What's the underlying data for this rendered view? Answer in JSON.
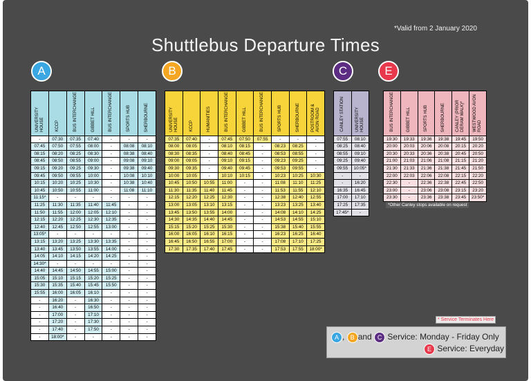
{
  "valid_note": "*Valid from 2 January 2020",
  "title": "Shuttlebus Departure Times",
  "routes": {
    "A": {
      "letter": "A",
      "color": "#3aa7e3",
      "headers": [
        "UNIVERSITY HOUSE",
        "KCCP",
        "BUS INTERCHANGE",
        "GIBBET HILL",
        "BUS INTERCHANGE",
        "SPORTS HUB",
        "SHERBOURNE"
      ],
      "rows": [
        [
          "-",
          "07:30",
          "07:35",
          "07:40",
          "-",
          "-",
          "-"
        ],
        [
          "07:45",
          "07:50",
          "07:55",
          "08:00",
          "-",
          "08:08",
          "08:10"
        ],
        [
          "08:15",
          "08:20",
          "08:25",
          "08:30",
          "-",
          "08:38",
          "08:40"
        ],
        [
          "08:45",
          "08:50",
          "08:55",
          "09:00",
          "-",
          "09:08",
          "09:10"
        ],
        [
          "09:15",
          "09:20",
          "09:25",
          "09:30",
          "-",
          "09:38",
          "09:40"
        ],
        [
          "09:45",
          "09:50",
          "09:55",
          "10:00",
          "-",
          "10:08",
          "10:10"
        ],
        [
          "10:15",
          "10:20",
          "10:25",
          "10:30",
          "-",
          "10:38",
          "10:40"
        ],
        [
          "10:45",
          "10:50",
          "10:55",
          "11:00",
          "-",
          "11:08",
          "11:10"
        ],
        [
          "11:15*",
          "-",
          "-",
          "-",
          "-",
          "-",
          "-"
        ],
        [
          "11:25",
          "11:30",
          "11:35",
          "11:40",
          "11:45",
          "-",
          "-"
        ],
        [
          "11:50",
          "11:55",
          "12:00",
          "12:05",
          "12:10",
          "-",
          "-"
        ],
        [
          "12:15",
          "12:20",
          "12:25",
          "12:30",
          "12:35",
          "-",
          "-"
        ],
        [
          "12:40",
          "12:45",
          "12:50",
          "12:55",
          "13:00",
          "-",
          "-"
        ],
        [
          "13:05*",
          "-",
          "-",
          "-",
          "-",
          "-",
          "-"
        ],
        [
          "13:15",
          "13:20",
          "13:25",
          "13:30",
          "13:35",
          "-",
          "-"
        ],
        [
          "13:40",
          "13:45",
          "13:50",
          "13:55",
          "14:00",
          "-",
          "-"
        ],
        [
          "14:05",
          "14:10",
          "14:15",
          "14:20",
          "14:25",
          "-",
          "-"
        ],
        [
          "14:30*",
          "-",
          "-",
          "-",
          "-",
          "-",
          "-"
        ],
        [
          "14:40",
          "14:45",
          "14:50",
          "14:55",
          "15:00",
          "-",
          "-"
        ],
        [
          "15:05",
          "15:10",
          "15:15",
          "15:20",
          "15:25",
          "-",
          "-"
        ],
        [
          "15:30",
          "15:35",
          "15:40",
          "15:45",
          "15:50",
          "-",
          "-"
        ],
        [
          "15:55",
          "16:00",
          "16:05",
          "16:10",
          "-",
          "-",
          "-"
        ],
        [
          "-",
          "16:20",
          "-",
          "16:30",
          "-",
          "-",
          "-"
        ],
        [
          "-",
          "16:40",
          "-",
          "16:50",
          "-",
          "-",
          "-"
        ],
        [
          "-",
          "17:00",
          "-",
          "17:10",
          "-",
          "-",
          "-"
        ],
        [
          "-",
          "17:20",
          "-",
          "17:30",
          "-",
          "-",
          "-"
        ],
        [
          "-",
          "17:40",
          "-",
          "17:50",
          "-",
          "-",
          "-"
        ],
        [
          "-",
          "18:00*",
          "-",
          "-",
          "-",
          "-",
          "-"
        ]
      ]
    },
    "B": {
      "letter": "B",
      "color": "#f5a623",
      "headers": [
        "UNIVERSITY HOUSE",
        "KCCP",
        "HUMANITIES",
        "BUS INTERCHANGE",
        "GIBBET HILL",
        "BUS INTERCHANGE",
        "SPORTS HUB",
        "SHERBOURNE",
        "POSTROOM & AVON ROAD"
      ],
      "rows": [
        [
          "07:35",
          "07:40",
          "-",
          "07:45",
          "07:50",
          "07:55",
          "-",
          "-",
          "-"
        ],
        [
          "08:00",
          "08:05",
          "-",
          "08:10",
          "08:15",
          "-",
          "08:23",
          "08:25",
          "-"
        ],
        [
          "08:30",
          "08:35",
          "-",
          "08:40",
          "08:45",
          "-",
          "08:53",
          "08:55",
          "-"
        ],
        [
          "09:00",
          "09:05",
          "-",
          "09:10",
          "09:15",
          "-",
          "09:23",
          "09:25",
          "-"
        ],
        [
          "09:30",
          "09:35",
          "-",
          "09:40",
          "09:45",
          "-",
          "09:53",
          "09:55",
          "-"
        ],
        [
          "10:00",
          "10:05",
          "-",
          "10:10",
          "10:15",
          "-",
          "10:23",
          "10:25",
          "10:30"
        ],
        [
          "10:45",
          "10:50",
          "10:55",
          "11:00",
          "-",
          "-",
          "11:08",
          "11:10",
          "11:25"
        ],
        [
          "11:30",
          "11:35",
          "11:40",
          "11:45",
          "-",
          "-",
          "11:53",
          "11:55",
          "12:10"
        ],
        [
          "12:15",
          "12:20",
          "12:25",
          "12:30",
          "-",
          "-",
          "12:38",
          "12:40",
          "12:55"
        ],
        [
          "13:00",
          "13:05",
          "13:10",
          "13:15",
          "-",
          "-",
          "13:23",
          "13:25",
          "13:40"
        ],
        [
          "13:45",
          "13:50",
          "13:55",
          "14:00",
          "-",
          "-",
          "14:08",
          "14:10",
          "14:25"
        ],
        [
          "14:30",
          "14:35",
          "14:40",
          "14:45",
          "-",
          "-",
          "14:53",
          "14:55",
          "15:10"
        ],
        [
          "15:15",
          "15:20",
          "15:25",
          "15:30",
          "-",
          "-",
          "15:38",
          "15:40",
          "15:55"
        ],
        [
          "16:00",
          "16:05",
          "16:10",
          "16:15",
          "-",
          "-",
          "16:23",
          "16:25",
          "16:40"
        ],
        [
          "16:45",
          "16:50",
          "16:55",
          "17:00",
          "-",
          "-",
          "17:08",
          "17:10",
          "17:25"
        ],
        [
          "17:30",
          "17:35",
          "17:40",
          "17:45",
          "-",
          "-",
          "17:53",
          "17:55",
          "18:00*"
        ]
      ]
    },
    "C": {
      "letter": "C",
      "color": "#5c2d82",
      "headers": [
        "CANLEY STATION",
        "UNIVERSITY HOUSE"
      ],
      "rows": [
        [
          "07:55",
          "08:10"
        ],
        [
          "08:25",
          "08:40"
        ],
        [
          "08:55",
          "09:10"
        ],
        [
          "09:25",
          "09:40"
        ],
        [
          "09:55",
          "10:05*"
        ],
        [
          "-",
          "-"
        ],
        [
          "-",
          "16:20"
        ],
        [
          "16:35",
          "16:45"
        ],
        [
          "17:00",
          "17:10"
        ],
        [
          "17:25",
          "17:35"
        ],
        [
          "17:45*",
          "-"
        ]
      ]
    },
    "E": {
      "letter": "E",
      "color": "#e8384c",
      "headers": [
        "BUS INTERCHANGE",
        "GIBBET HILL",
        "SPORTS HUB",
        "SHERBOURNE",
        "CANLEY (PRIOR DERAM WALK)*",
        "WESTWOOD AVON ROAD"
      ],
      "rows": [
        [
          "19:30",
          "19:33",
          "19:36",
          "19:38",
          "19:45",
          "19:50"
        ],
        [
          "20:00",
          "20:03",
          "20:06",
          "20:08",
          "20:15",
          "20:20"
        ],
        [
          "20:30",
          "20:33",
          "20:36",
          "20:38",
          "20:45",
          "20:50"
        ],
        [
          "21:00",
          "21:03",
          "21:06",
          "21:08",
          "21:15",
          "21:20"
        ],
        [
          "21:30",
          "21:33",
          "21:36",
          "21:38",
          "21:45",
          "21:50"
        ],
        [
          "22:00",
          "22:03",
          "22:06",
          "22:08",
          "22:15",
          "22:20"
        ],
        [
          "22:30",
          "-",
          "22:36",
          "22:38",
          "22:45",
          "22:50"
        ],
        [
          "23:00",
          "-",
          "23:06",
          "23:08",
          "23:15",
          "23:20"
        ],
        [
          "23:30",
          "-",
          "23:36",
          "23:38",
          "23:45",
          "23:50*"
        ]
      ],
      "note": "*Other Canley stops available on request"
    }
  },
  "terminates_note": "* Service Terminates Here",
  "legend": {
    "line1": {
      "sep1": ",",
      "sep2": "and",
      "text": "Service: Monday - Friday Only"
    },
    "line2": {
      "text": "Service: Everyday"
    }
  }
}
